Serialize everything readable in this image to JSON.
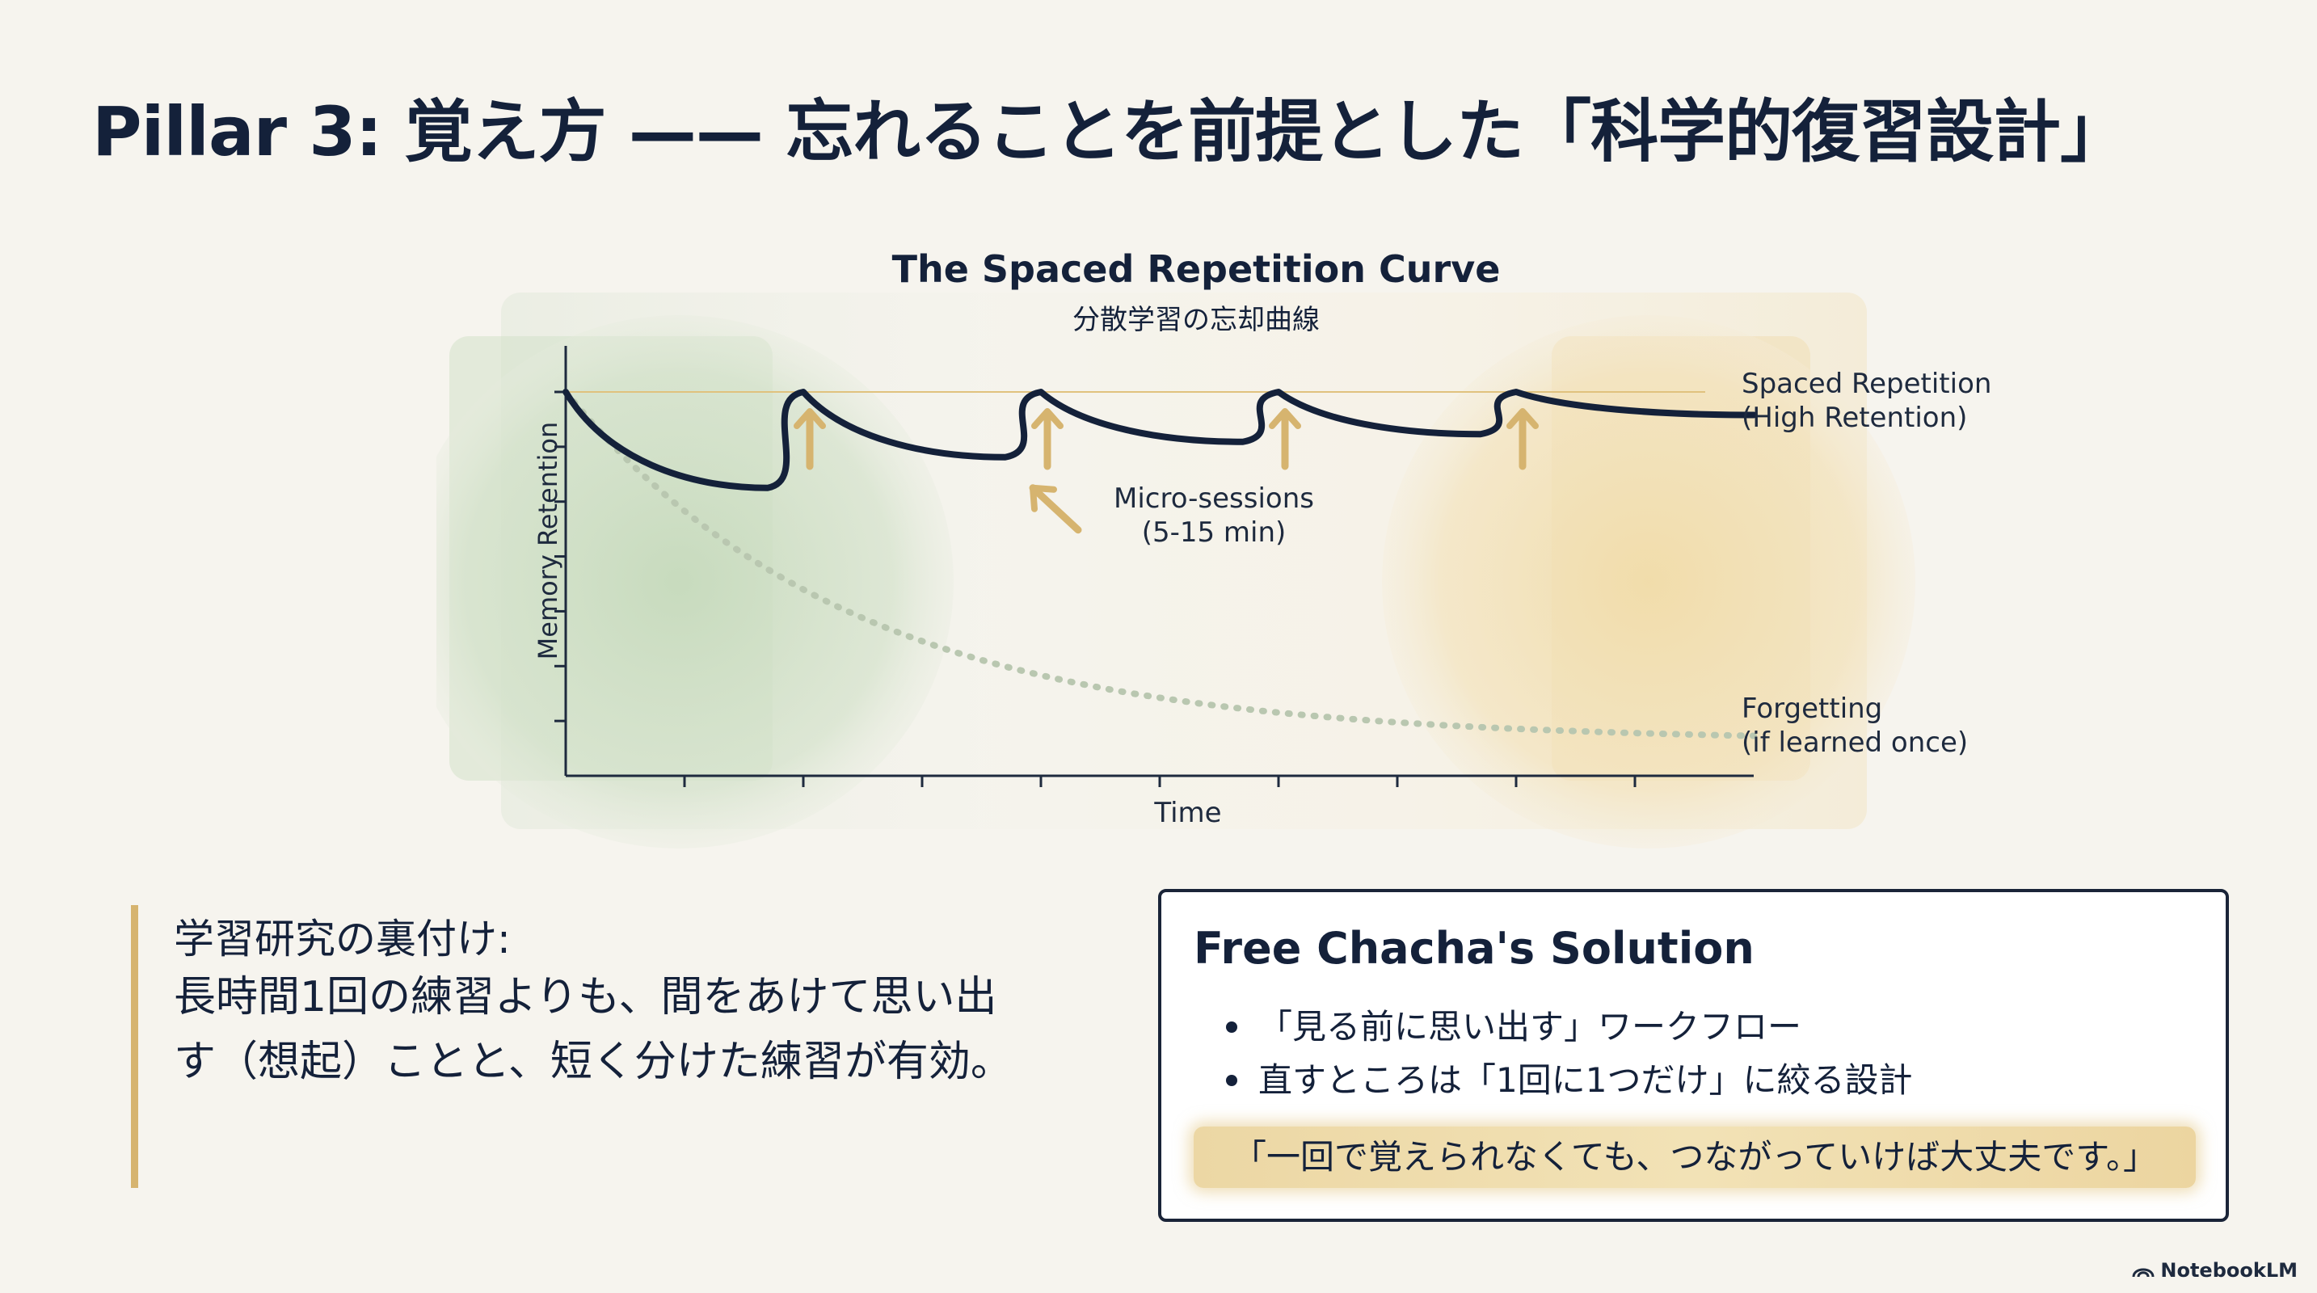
{
  "title": "Pillar 3: 覚え方 —— 忘れることを前提とした「科学的復習設計」",
  "chart": {
    "title": "The Spaced Repetition Curve",
    "subtitle": "分散学習の忘却曲線",
    "ylabel": "Memory Retention",
    "xlabel": "Time",
    "annotation_micro_line1": "Micro-sessions",
    "annotation_micro_line2": "(5-15 min)",
    "label_spaced_line1": "Spaced Repetition",
    "label_spaced_line2": "(High Retention)",
    "label_forget_line1": "Forgetting",
    "label_forget_line2": "(if learned once)"
  },
  "chart_data": {
    "type": "line",
    "x_range": [
      0,
      10
    ],
    "y_range": [
      0,
      1
    ],
    "x_ticks": 10,
    "y_ticks": 7,
    "review_points": [
      2,
      4,
      6,
      8
    ],
    "reference_level": 1.0,
    "series": [
      {
        "name": "Spaced Repetition (High Retention)",
        "style": "solid",
        "color": "#14213a",
        "points": [
          [
            0,
            1.0
          ],
          [
            1.7,
            0.75
          ],
          [
            2.0,
            1.0
          ],
          [
            3.7,
            0.83
          ],
          [
            4.0,
            1.0
          ],
          [
            5.7,
            0.87
          ],
          [
            6.0,
            1.0
          ],
          [
            7.7,
            0.89
          ],
          [
            8.0,
            1.0
          ],
          [
            10,
            0.94
          ]
        ]
      },
      {
        "name": "Forgetting (if learned once)",
        "style": "dotted",
        "color": "#b9c7b0",
        "points": [
          [
            0,
            1.0
          ],
          [
            1,
            0.7
          ],
          [
            2,
            0.49
          ],
          [
            3,
            0.34
          ],
          [
            4,
            0.24
          ],
          [
            5,
            0.17
          ],
          [
            6,
            0.13
          ],
          [
            7,
            0.11
          ],
          [
            8,
            0.1
          ],
          [
            9,
            0.1
          ],
          [
            10,
            0.11
          ]
        ]
      }
    ],
    "colors": {
      "axis": "#1e2a3e",
      "arrow": "#d6b46f",
      "green_zone": "#c9dcc0",
      "gold_zone": "#f2deb0"
    }
  },
  "research": {
    "heading": "学習研究の裏付け:",
    "body": "長時間1回の練習よりも、間をあけて思い出す（想起）ことと、短く分けた練習が有効。"
  },
  "solution": {
    "title": "Free Chacha's Solution",
    "items": [
      "「見る前に思い出す」ワークフロー",
      "直すところは「1回に1つだけ」に絞る設計"
    ],
    "quote": "「一回で覚えられなくても、つながっていけば大丈夫です。」"
  },
  "footer": {
    "brand": "NotebookLM",
    "brand_icon": "notebooklm-logo-icon"
  }
}
